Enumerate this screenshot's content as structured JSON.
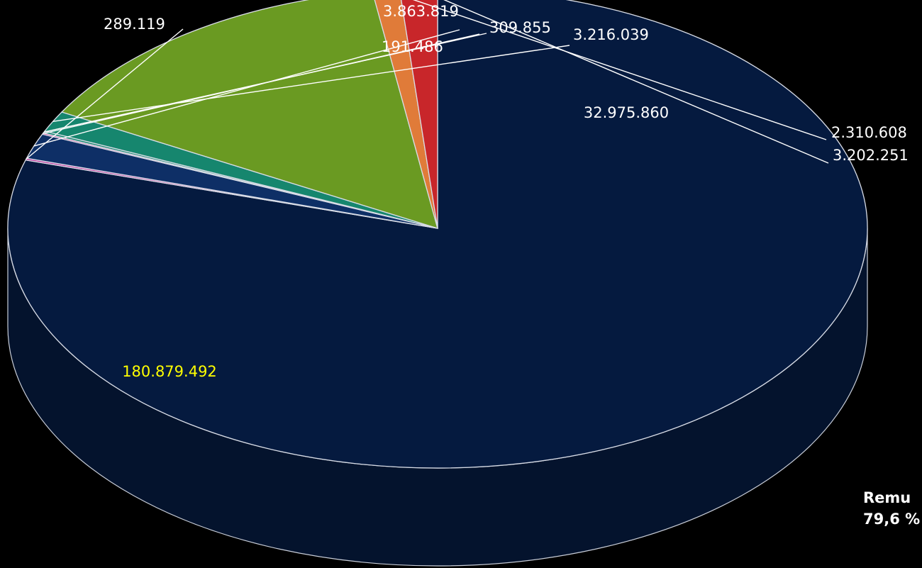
{
  "chart_data": {
    "type": "pie",
    "title": "",
    "slices": [
      {
        "value": 180879492,
        "label": "180.879.492",
        "color": "#051a3f",
        "label_color": "#ffff00"
      },
      {
        "value": 289119,
        "label": "289.119",
        "color": "#c03aa0"
      },
      {
        "value": 3863819,
        "label": "3.863.819",
        "color": "#0e2f66"
      },
      {
        "value": 191486,
        "label": "191.486",
        "color": "#d02a8a"
      },
      {
        "value": 309855,
        "label": "309.855",
        "color": "#16866e"
      },
      {
        "value": 3216039,
        "label": "3.216.039",
        "color": "#16866e"
      },
      {
        "value": 32975860,
        "label": "32.975.860",
        "color": "#6a9a22"
      },
      {
        "value": 2310608,
        "label": "2.310.608",
        "color": "#e07b39"
      },
      {
        "value": 3202251,
        "label": "3.202.251",
        "color": "#c8262a"
      }
    ],
    "style": "3d",
    "legend": "none"
  },
  "annotation": {
    "line1": "Remu",
    "line2": "79,6 %"
  }
}
